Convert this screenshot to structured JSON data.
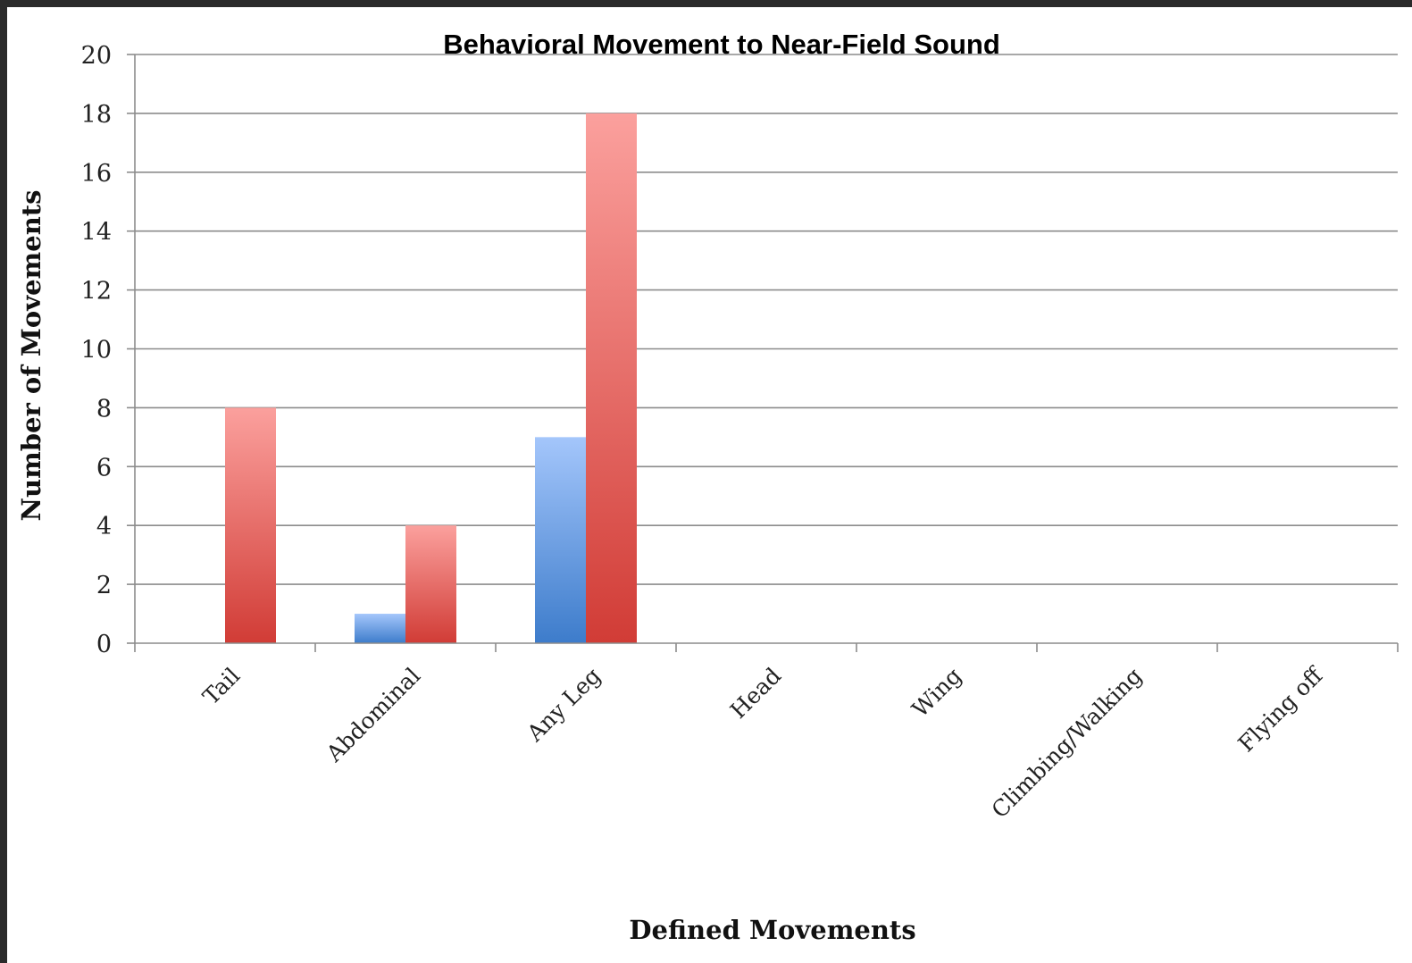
{
  "chart_data": {
    "type": "bar",
    "title": "Behavioral Movement to Near-Field Sound",
    "xlabel": "Defined Movements",
    "ylabel": "Number of Movements",
    "categories": [
      "Tail",
      "Abdominal",
      "Any Leg",
      "Head",
      "Wing",
      "Climbing/Walking",
      "Flying off"
    ],
    "series": [
      {
        "values": [
          0,
          1,
          7,
          0,
          0,
          0,
          0
        ],
        "color_top": "#a4c6fb",
        "color_bottom": "#3d7ccb"
      },
      {
        "values": [
          8,
          4,
          18,
          0,
          0,
          0,
          0
        ],
        "color_top": "#fba09d",
        "color_bottom": "#d13c36"
      }
    ],
    "ylim": [
      0,
      20
    ],
    "yticks": [
      0,
      2,
      4,
      6,
      8,
      10,
      12,
      14,
      16,
      18,
      20
    ],
    "grid": true,
    "legend": "none"
  }
}
